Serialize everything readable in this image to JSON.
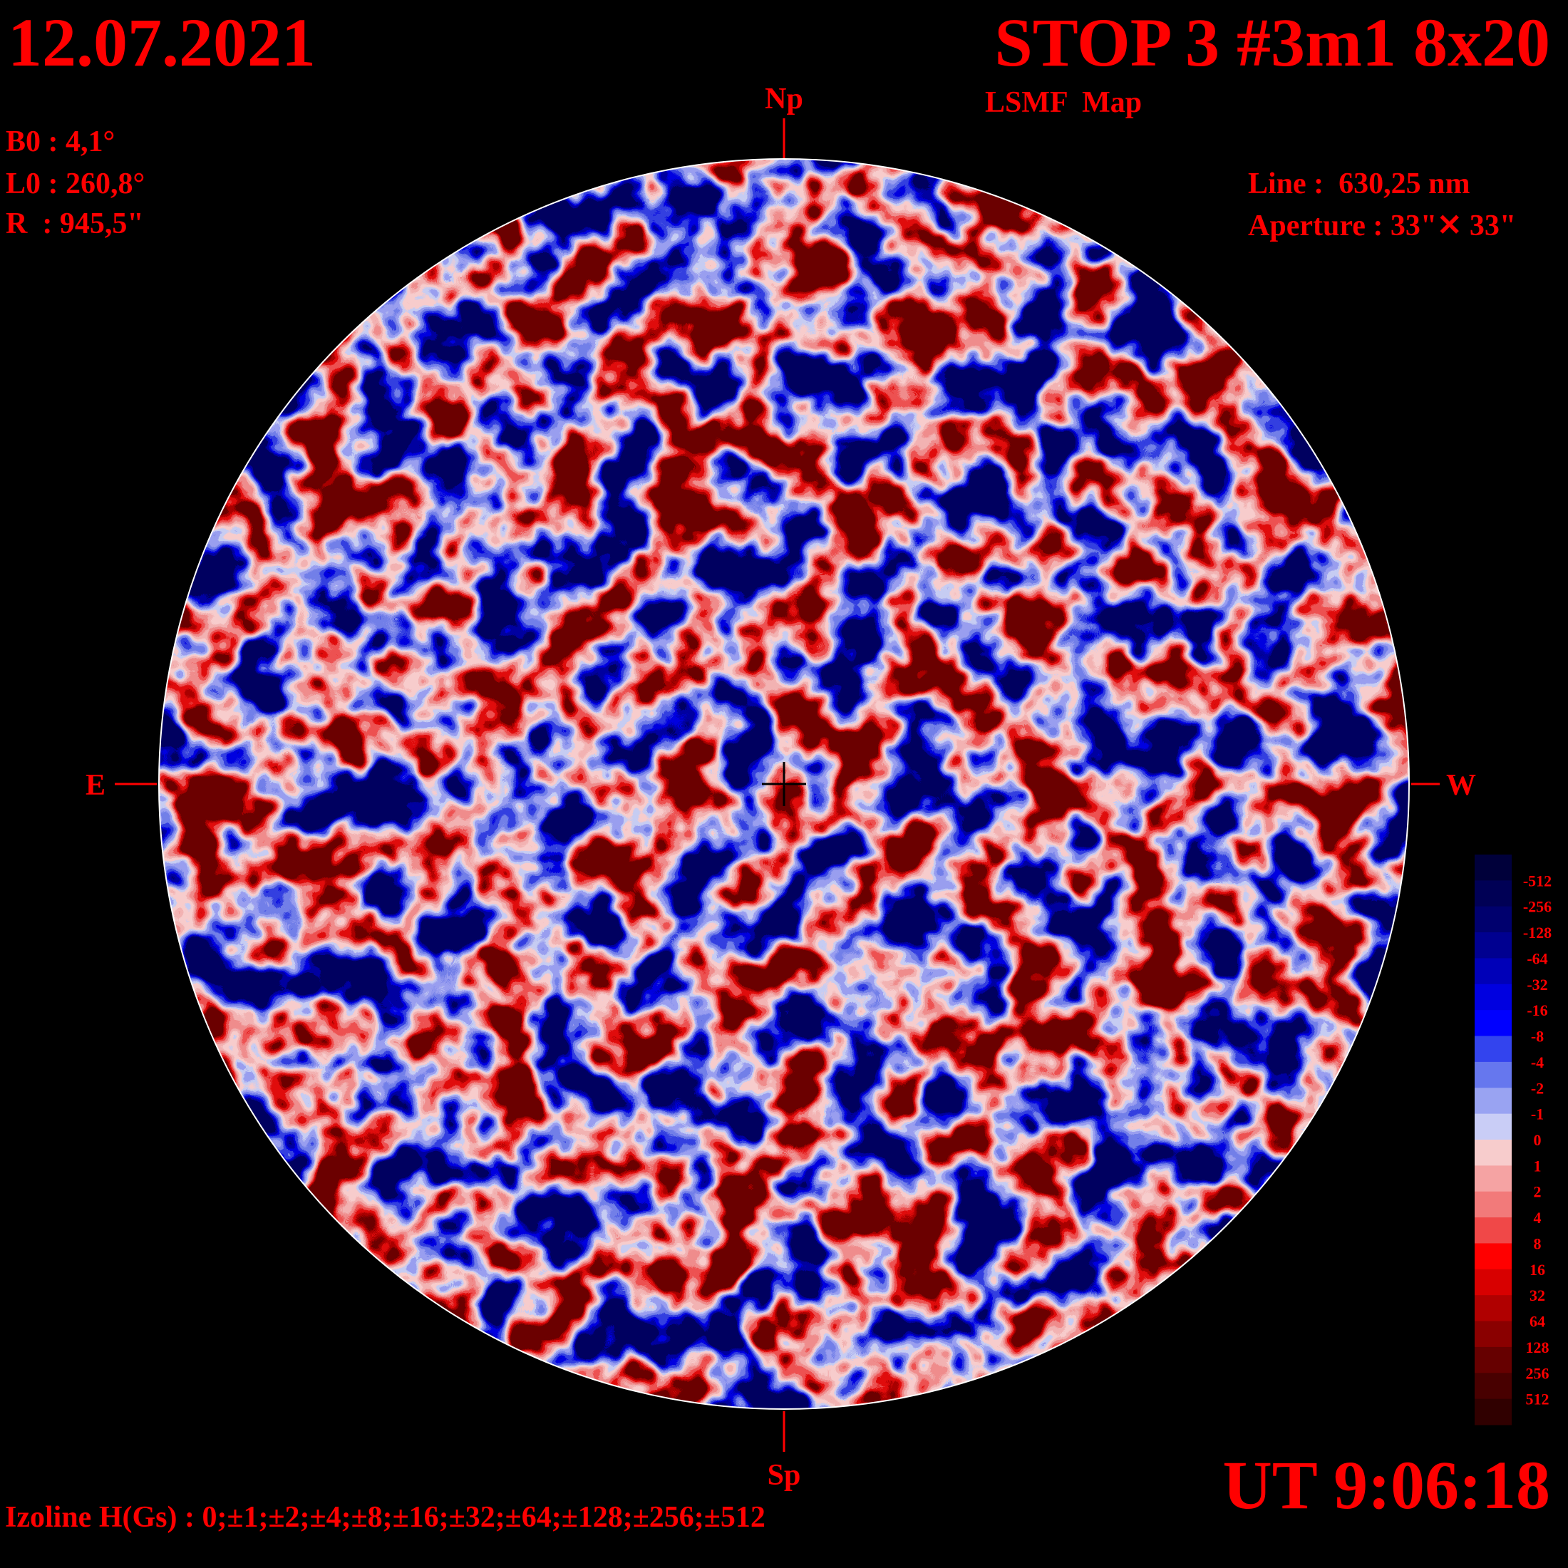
{
  "header": {
    "date": "12.07.2021",
    "title": "STOP 3 #3m1 8x20",
    "subtitle": "LSMF  Map"
  },
  "parameters": {
    "b0": "B0 : 4,1°",
    "l0": "L0 : 260,8°",
    "r": "R  : 945,5\""
  },
  "instrument": {
    "line": "Line :  630,25 nm",
    "aperture": "Aperture : 33\"✕ 33\""
  },
  "compass": {
    "north": "Np",
    "south": "Sp",
    "east": "E",
    "west": "W"
  },
  "colorbar": {
    "labels": [
      "-512",
      "-256",
      "-128",
      "-64",
      "-32",
      "-16",
      "-8",
      "-4",
      "-2",
      "-1",
      "0",
      "1",
      "2",
      "4",
      "8",
      "16",
      "32",
      "64",
      "128",
      "256",
      "512"
    ]
  },
  "footer": {
    "izoline": "Izoline H(Gs) : 0;±1;±2;±4;±8;±16;±32;±64;±128;±256;±512",
    "time": "UT 9:06:18"
  }
}
